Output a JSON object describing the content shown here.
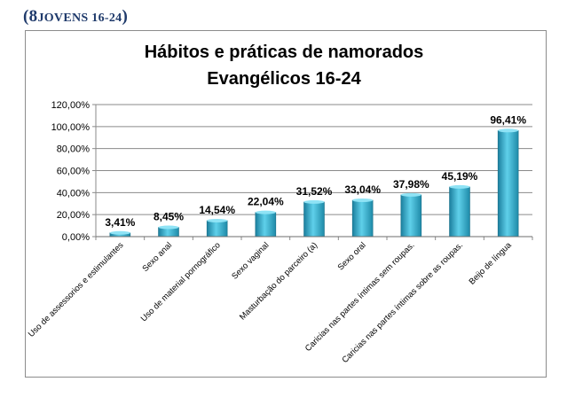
{
  "heading": {
    "open": "(8",
    "text": "JOVENS 16-24",
    "close": ")"
  },
  "chart_data": {
    "type": "bar",
    "title": [
      "Hábitos e práticas de namorados",
      "Evangélicos 16-24"
    ],
    "categories": [
      "Uso de assessorios e estimulantes",
      "Sexo anal",
      "Uso de material pornográfico",
      "Sexo vaginal",
      "Masturbação do parceiro (a)",
      "Sexo oral",
      "Caricias nas partes íntimas sem roupas.",
      "Caricias nas partes íntimas sobre as roupas.",
      "Beijo de língua"
    ],
    "values": [
      3.41,
      8.45,
      14.54,
      22.04,
      31.52,
      33.04,
      37.98,
      45.19,
      96.41
    ],
    "data_labels": [
      "3,41%",
      "8,45%",
      "14,54%",
      "22,04%",
      "31,52%",
      "33,04%",
      "37,98%",
      "45,19%",
      "96,41%"
    ],
    "ylim": [
      0,
      120
    ],
    "yticks": [
      0,
      20,
      40,
      60,
      80,
      100,
      120
    ],
    "ytick_labels": [
      "0,00%",
      "20,00%",
      "40,00%",
      "60,00%",
      "80,00%",
      "100,00%",
      "120,00%"
    ],
    "grid": true,
    "legend": "none",
    "bar_color": "#2aa3c2"
  }
}
